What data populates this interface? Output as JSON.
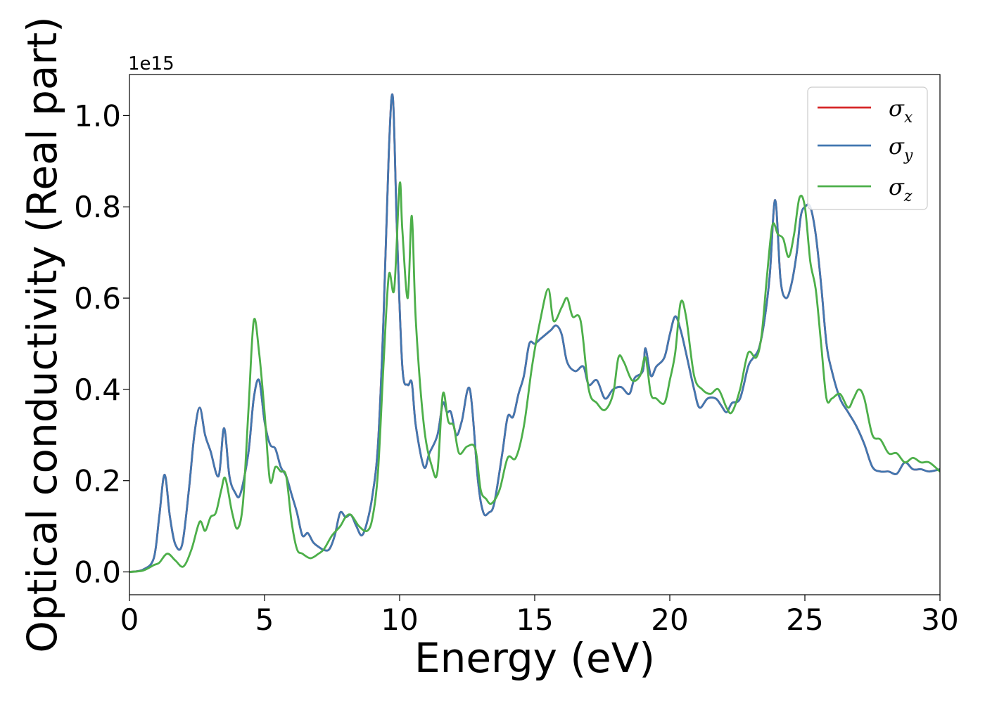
{
  "chart_data": {
    "type": "line",
    "xlabel": "Energy (eV)",
    "ylabel": "Optical conductivity (Real part)",
    "y_offset_text": "1e15",
    "xlim": [
      0,
      30
    ],
    "ylim": [
      -0.05,
      1.09
    ],
    "x_ticks": [
      0,
      5,
      10,
      15,
      20,
      25,
      30
    ],
    "x_tick_labels": [
      "0",
      "5",
      "10",
      "15",
      "20",
      "25",
      "30"
    ],
    "y_ticks": [
      0.0,
      0.2,
      0.4,
      0.6,
      0.8,
      1.0
    ],
    "y_tick_labels": [
      "0.0",
      "0.2",
      "0.4",
      "0.6",
      "0.8",
      "1.0"
    ],
    "grid": false,
    "legend_position": "top-right",
    "series": [
      {
        "name": "σx",
        "symbol": "σ",
        "subscript": "x",
        "color": "#d62728",
        "x": [
          0,
          0.5,
          0.9,
          1.1,
          1.3,
          1.5,
          1.7,
          1.95,
          2.2,
          2.4,
          2.6,
          2.8,
          3.0,
          3.3,
          3.5,
          3.7,
          3.9,
          4.1,
          4.4,
          4.6,
          4.8,
          5.0,
          5.2,
          5.4,
          5.6,
          5.8,
          6.0,
          6.2,
          6.4,
          6.6,
          6.8,
          7.0,
          7.2,
          7.4,
          7.6,
          7.8,
          8.0,
          8.2,
          8.4,
          8.6,
          8.8,
          9.0,
          9.2,
          9.4,
          9.6,
          9.75,
          9.9,
          10.1,
          10.3,
          10.45,
          10.6,
          10.9,
          11.1,
          11.4,
          11.6,
          11.75,
          11.9,
          12.1,
          12.3,
          12.6,
          12.9,
          13.1,
          13.3,
          13.5,
          13.8,
          14.0,
          14.2,
          14.4,
          14.6,
          14.8,
          15.0,
          15.2,
          15.4,
          15.6,
          15.8,
          16.0,
          16.2,
          16.5,
          16.8,
          17.0,
          17.3,
          17.6,
          17.9,
          18.2,
          18.5,
          18.7,
          19.0,
          19.1,
          19.3,
          19.5,
          19.8,
          20.0,
          20.2,
          20.4,
          20.6,
          20.9,
          21.1,
          21.4,
          21.7,
          21.9,
          22.1,
          22.3,
          22.6,
          22.9,
          23.1,
          23.3,
          23.5,
          23.7,
          23.9,
          24.1,
          24.3,
          24.5,
          24.7,
          24.85,
          25.0,
          25.2,
          25.4,
          25.6,
          25.8,
          26.0,
          26.3,
          26.6,
          26.9,
          27.2,
          27.5,
          27.8,
          28.1,
          28.4,
          28.7,
          29.0,
          29.3,
          29.6,
          30.0
        ],
        "y": [
          0,
          0.005,
          0.03,
          0.12,
          0.213,
          0.12,
          0.06,
          0.06,
          0.18,
          0.3,
          0.36,
          0.3,
          0.265,
          0.21,
          0.315,
          0.21,
          0.175,
          0.17,
          0.26,
          0.38,
          0.42,
          0.33,
          0.28,
          0.27,
          0.23,
          0.21,
          0.17,
          0.13,
          0.08,
          0.085,
          0.065,
          0.055,
          0.048,
          0.05,
          0.08,
          0.13,
          0.12,
          0.125,
          0.1,
          0.08,
          0.11,
          0.17,
          0.28,
          0.55,
          0.92,
          1.04,
          0.75,
          0.45,
          0.41,
          0.415,
          0.32,
          0.23,
          0.26,
          0.3,
          0.37,
          0.35,
          0.35,
          0.3,
          0.33,
          0.4,
          0.2,
          0.13,
          0.13,
          0.15,
          0.26,
          0.34,
          0.34,
          0.39,
          0.43,
          0.5,
          0.5,
          0.51,
          0.52,
          0.53,
          0.54,
          0.52,
          0.46,
          0.44,
          0.45,
          0.41,
          0.42,
          0.38,
          0.4,
          0.405,
          0.39,
          0.425,
          0.44,
          0.49,
          0.43,
          0.45,
          0.47,
          0.52,
          0.56,
          0.53,
          0.48,
          0.4,
          0.36,
          0.38,
          0.38,
          0.365,
          0.35,
          0.37,
          0.38,
          0.45,
          0.47,
          0.49,
          0.55,
          0.65,
          0.815,
          0.64,
          0.6,
          0.63,
          0.7,
          0.78,
          0.8,
          0.8,
          0.74,
          0.63,
          0.5,
          0.44,
          0.38,
          0.35,
          0.32,
          0.28,
          0.23,
          0.22,
          0.22,
          0.215,
          0.24,
          0.225,
          0.225,
          0.22,
          0.225
        ]
      },
      {
        "name": "σy",
        "symbol": "σ",
        "subscript": "y",
        "color": "#4277b0",
        "x": [
          0,
          0.5,
          0.9,
          1.1,
          1.3,
          1.5,
          1.7,
          1.95,
          2.2,
          2.4,
          2.6,
          2.8,
          3.0,
          3.3,
          3.5,
          3.7,
          3.9,
          4.1,
          4.4,
          4.6,
          4.8,
          5.0,
          5.2,
          5.4,
          5.6,
          5.8,
          6.0,
          6.2,
          6.4,
          6.6,
          6.8,
          7.0,
          7.2,
          7.4,
          7.6,
          7.8,
          8.0,
          8.2,
          8.4,
          8.6,
          8.8,
          9.0,
          9.2,
          9.4,
          9.6,
          9.75,
          9.9,
          10.1,
          10.3,
          10.45,
          10.6,
          10.9,
          11.1,
          11.4,
          11.6,
          11.75,
          11.9,
          12.1,
          12.3,
          12.6,
          12.9,
          13.1,
          13.3,
          13.5,
          13.8,
          14.0,
          14.2,
          14.4,
          14.6,
          14.8,
          15.0,
          15.2,
          15.4,
          15.6,
          15.8,
          16.0,
          16.2,
          16.5,
          16.8,
          17.0,
          17.3,
          17.6,
          17.9,
          18.2,
          18.5,
          18.7,
          19.0,
          19.1,
          19.3,
          19.5,
          19.8,
          20.0,
          20.2,
          20.4,
          20.6,
          20.9,
          21.1,
          21.4,
          21.7,
          21.9,
          22.1,
          22.3,
          22.6,
          22.9,
          23.1,
          23.3,
          23.5,
          23.7,
          23.9,
          24.1,
          24.3,
          24.5,
          24.7,
          24.85,
          25.0,
          25.2,
          25.4,
          25.6,
          25.8,
          26.0,
          26.3,
          26.6,
          26.9,
          27.2,
          27.5,
          27.8,
          28.1,
          28.4,
          28.7,
          29.0,
          29.3,
          29.6,
          30.0
        ],
        "y": [
          0,
          0.005,
          0.03,
          0.12,
          0.213,
          0.12,
          0.06,
          0.06,
          0.18,
          0.3,
          0.36,
          0.3,
          0.265,
          0.21,
          0.315,
          0.21,
          0.175,
          0.17,
          0.26,
          0.38,
          0.42,
          0.33,
          0.28,
          0.27,
          0.23,
          0.21,
          0.17,
          0.13,
          0.08,
          0.085,
          0.065,
          0.055,
          0.048,
          0.05,
          0.08,
          0.13,
          0.12,
          0.125,
          0.1,
          0.08,
          0.11,
          0.17,
          0.28,
          0.55,
          0.92,
          1.04,
          0.75,
          0.45,
          0.41,
          0.415,
          0.32,
          0.23,
          0.26,
          0.3,
          0.37,
          0.35,
          0.35,
          0.3,
          0.33,
          0.4,
          0.2,
          0.13,
          0.13,
          0.15,
          0.26,
          0.34,
          0.34,
          0.39,
          0.43,
          0.5,
          0.5,
          0.51,
          0.52,
          0.53,
          0.54,
          0.52,
          0.46,
          0.44,
          0.45,
          0.41,
          0.42,
          0.38,
          0.4,
          0.405,
          0.39,
          0.425,
          0.44,
          0.49,
          0.43,
          0.45,
          0.47,
          0.52,
          0.56,
          0.53,
          0.48,
          0.4,
          0.36,
          0.38,
          0.38,
          0.365,
          0.35,
          0.37,
          0.38,
          0.45,
          0.47,
          0.49,
          0.55,
          0.65,
          0.815,
          0.64,
          0.6,
          0.63,
          0.7,
          0.78,
          0.8,
          0.8,
          0.74,
          0.63,
          0.5,
          0.44,
          0.38,
          0.35,
          0.32,
          0.28,
          0.23,
          0.22,
          0.22,
          0.215,
          0.24,
          0.225,
          0.225,
          0.22,
          0.225
        ]
      },
      {
        "name": "σz",
        "symbol": "σ",
        "subscript": "z",
        "color": "#4daf4a",
        "x": [
          0,
          0.5,
          0.9,
          1.1,
          1.4,
          1.7,
          2.0,
          2.3,
          2.6,
          2.8,
          3.0,
          3.2,
          3.4,
          3.55,
          3.8,
          4.0,
          4.2,
          4.4,
          4.6,
          4.8,
          5.0,
          5.2,
          5.4,
          5.6,
          5.8,
          6.0,
          6.2,
          6.4,
          6.7,
          7.0,
          7.2,
          7.5,
          7.8,
          8.0,
          8.2,
          8.5,
          8.8,
          9.0,
          9.2,
          9.4,
          9.6,
          9.8,
          10.0,
          10.1,
          10.3,
          10.45,
          10.6,
          10.9,
          11.2,
          11.4,
          11.6,
          11.8,
          12.0,
          12.2,
          12.5,
          12.8,
          13.0,
          13.2,
          13.4,
          13.7,
          14.0,
          14.3,
          14.6,
          14.9,
          15.2,
          15.5,
          15.7,
          16.0,
          16.2,
          16.4,
          16.7,
          17.0,
          17.3,
          17.6,
          17.9,
          18.1,
          18.3,
          18.6,
          18.9,
          19.1,
          19.3,
          19.5,
          19.8,
          20.0,
          20.2,
          20.4,
          20.6,
          20.9,
          21.2,
          21.5,
          21.8,
          22.1,
          22.3,
          22.6,
          22.9,
          23.2,
          23.4,
          23.6,
          23.8,
          24.0,
          24.2,
          24.4,
          24.6,
          24.8,
          25.0,
          25.2,
          25.4,
          25.6,
          25.8,
          26.0,
          26.3,
          26.6,
          26.8,
          27.0,
          27.2,
          27.5,
          27.8,
          28.1,
          28.4,
          28.7,
          29.0,
          29.3,
          29.6,
          30.0
        ],
        "y": [
          0,
          0.003,
          0.015,
          0.02,
          0.04,
          0.025,
          0.012,
          0.05,
          0.11,
          0.09,
          0.12,
          0.13,
          0.18,
          0.205,
          0.13,
          0.095,
          0.15,
          0.35,
          0.55,
          0.48,
          0.35,
          0.2,
          0.23,
          0.22,
          0.21,
          0.11,
          0.05,
          0.04,
          0.03,
          0.04,
          0.05,
          0.08,
          0.1,
          0.12,
          0.125,
          0.1,
          0.09,
          0.12,
          0.22,
          0.45,
          0.65,
          0.62,
          0.85,
          0.75,
          0.6,
          0.78,
          0.55,
          0.32,
          0.23,
          0.22,
          0.39,
          0.33,
          0.32,
          0.26,
          0.275,
          0.27,
          0.18,
          0.16,
          0.15,
          0.18,
          0.25,
          0.25,
          0.32,
          0.45,
          0.55,
          0.62,
          0.55,
          0.58,
          0.6,
          0.56,
          0.55,
          0.4,
          0.37,
          0.355,
          0.39,
          0.47,
          0.46,
          0.42,
          0.43,
          0.47,
          0.39,
          0.38,
          0.37,
          0.42,
          0.48,
          0.59,
          0.56,
          0.43,
          0.4,
          0.39,
          0.4,
          0.36,
          0.35,
          0.4,
          0.48,
          0.47,
          0.52,
          0.65,
          0.76,
          0.74,
          0.73,
          0.69,
          0.74,
          0.82,
          0.8,
          0.68,
          0.62,
          0.5,
          0.38,
          0.38,
          0.39,
          0.36,
          0.38,
          0.4,
          0.38,
          0.3,
          0.29,
          0.26,
          0.26,
          0.24,
          0.25,
          0.24,
          0.24,
          0.22
        ]
      }
    ]
  }
}
